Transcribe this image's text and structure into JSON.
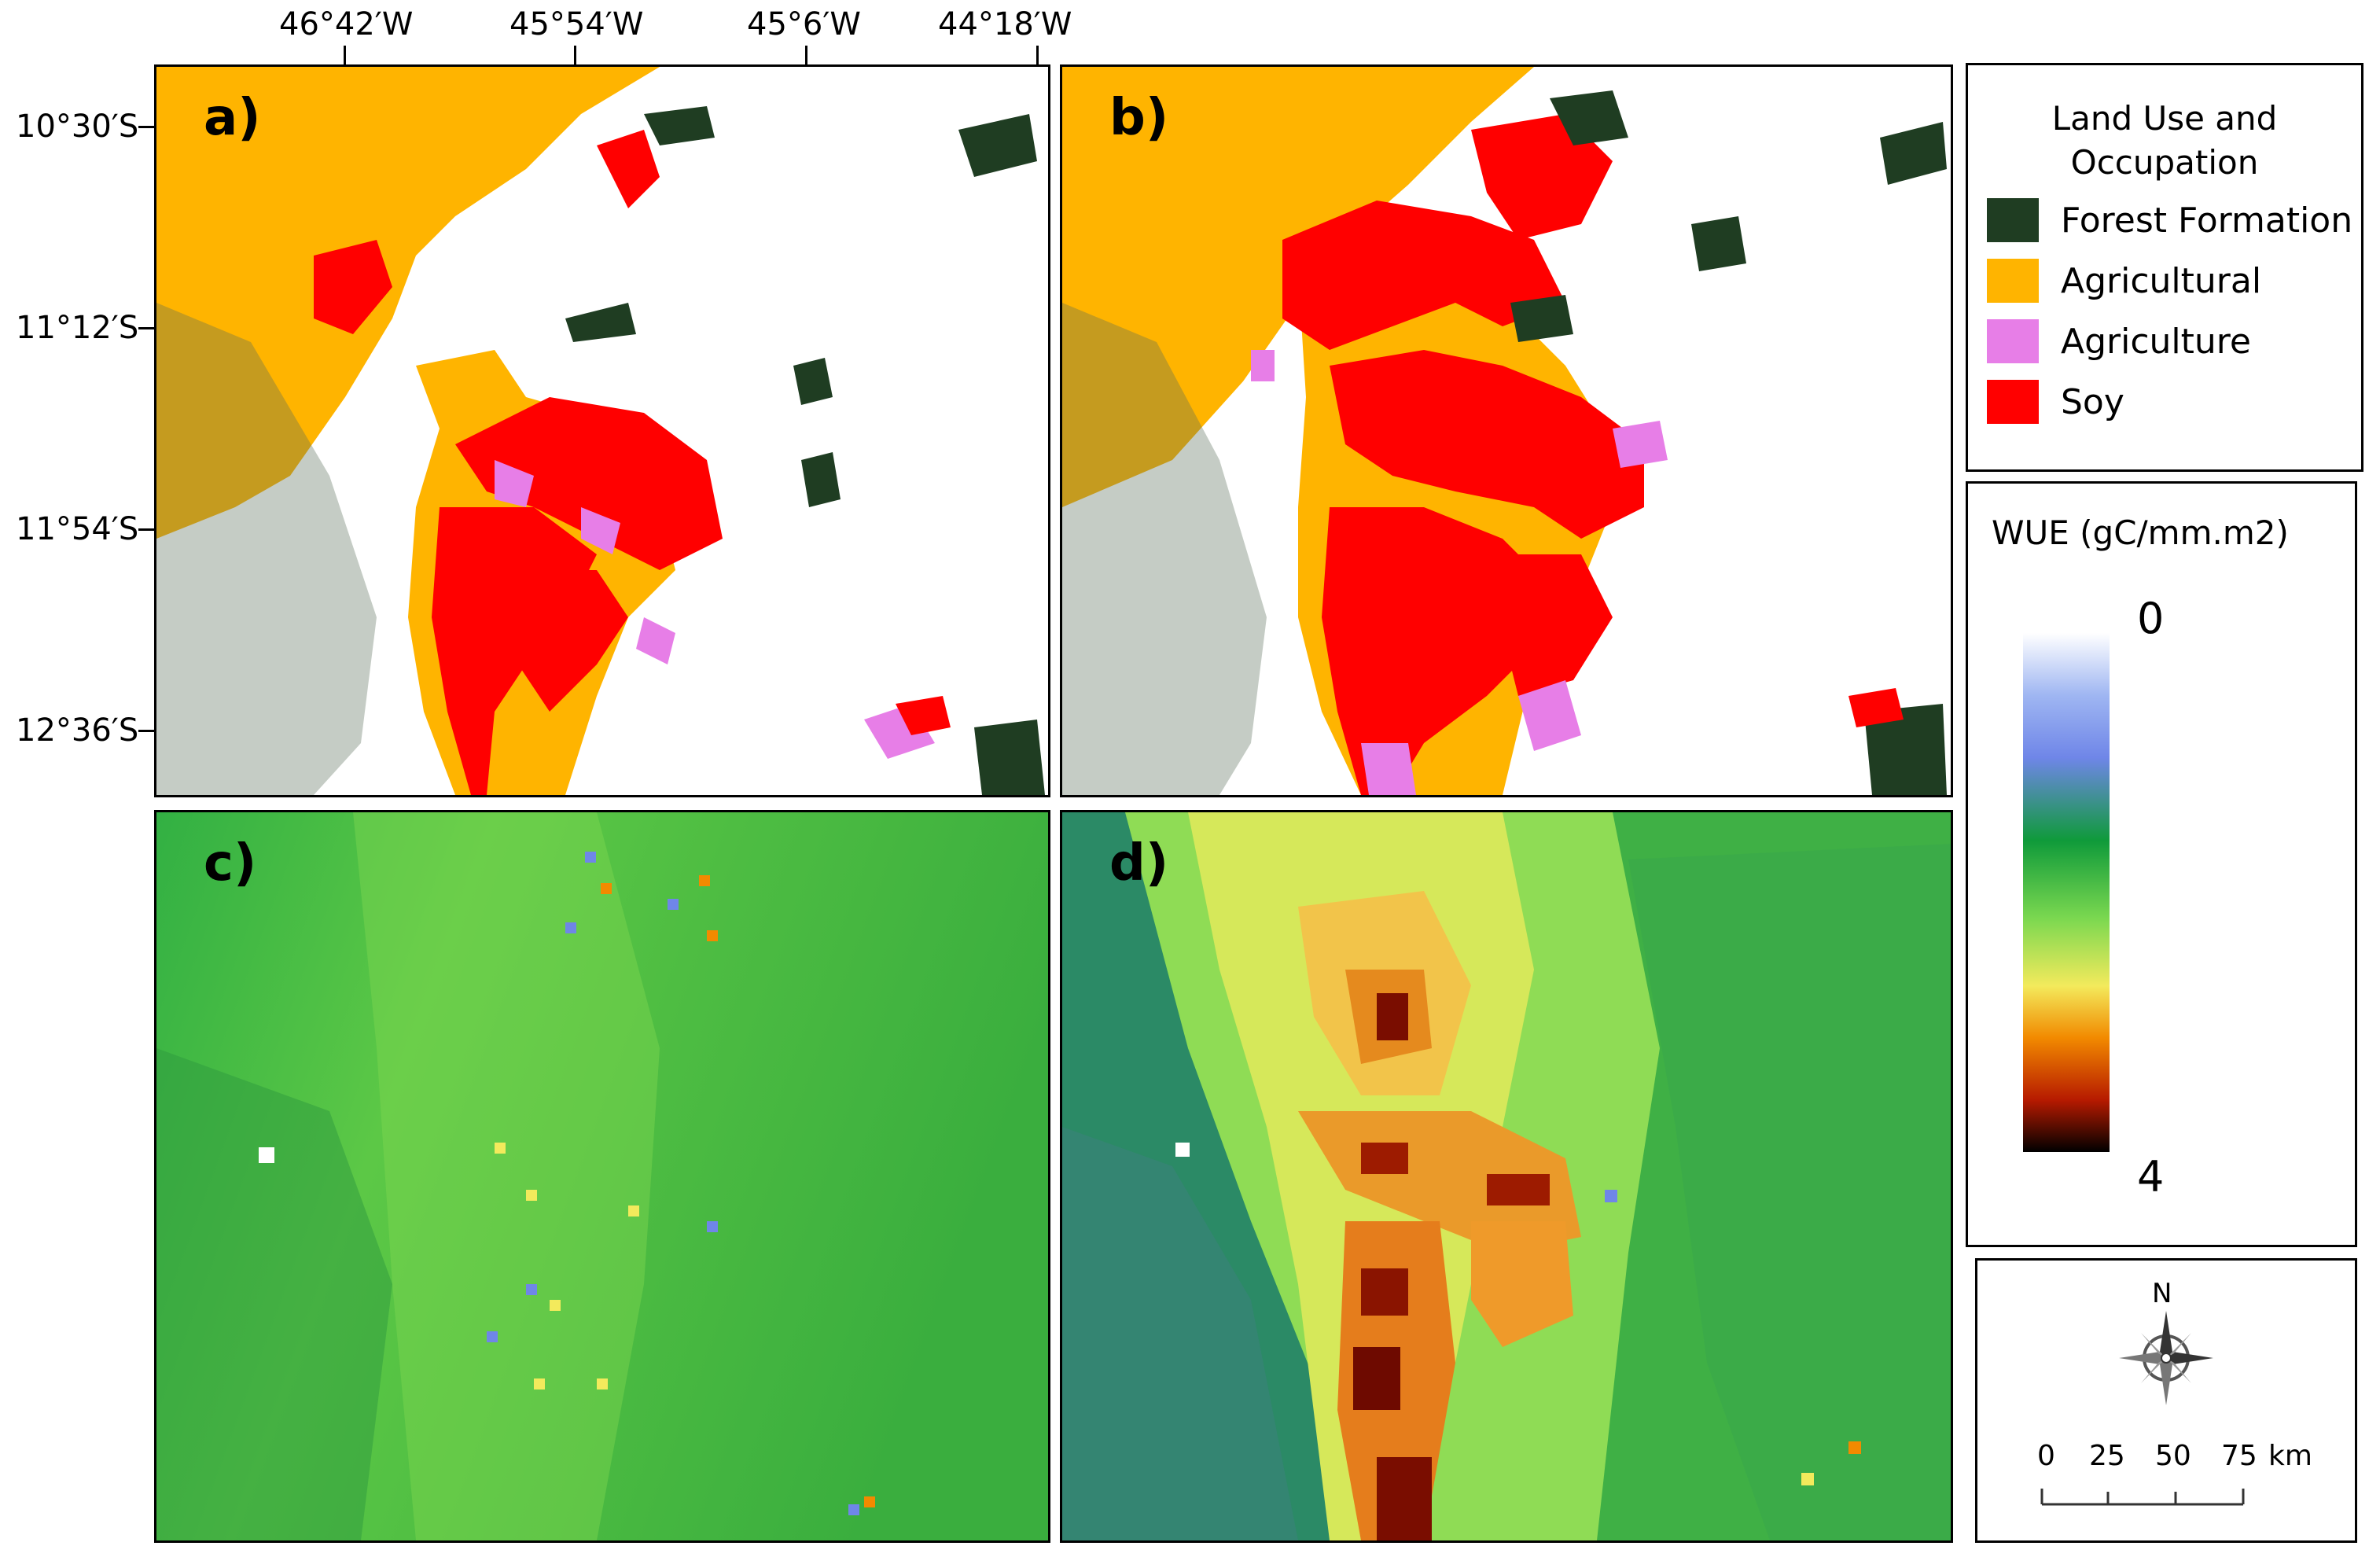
{
  "map": {
    "longitude_labels": [
      "46°42′W",
      "45°54′W",
      "45°6′W",
      "44°18′W"
    ],
    "latitude_labels": [
      "10°30′S",
      "11°12′S",
      "11°54′S",
      "12°36′S"
    ],
    "panels": [
      {
        "label": "a)",
        "type": "land-use"
      },
      {
        "label": "b)",
        "type": "land-use"
      },
      {
        "label": "c)",
        "type": "wue"
      },
      {
        "label": "d)",
        "type": "wue"
      }
    ]
  },
  "land_use_legend": {
    "title_line1": "Land Use and",
    "title_line2": "Occupation",
    "classes": [
      {
        "label": "Forest Formation",
        "color": "#1f3d22"
      },
      {
        "label": "Agricultural",
        "color": "#ffb400"
      },
      {
        "label": "Agriculture",
        "color": "#e77ee7"
      },
      {
        "label": "Soy",
        "color": "#ff0000"
      }
    ]
  },
  "wue_legend": {
    "title": "WUE (gC/mm.m2)",
    "min_label": "0",
    "max_label": "4",
    "gradient_colors": [
      "#ffffff",
      "#6f86e8",
      "#0f9a3a",
      "#7bd850",
      "#f3ea5c",
      "#f28a00",
      "#b61a00",
      "#000000"
    ]
  },
  "north_arrow": {
    "label": "N"
  },
  "scale_bar": {
    "labels": [
      "0",
      "25",
      "50",
      "75"
    ],
    "unit": "km"
  }
}
